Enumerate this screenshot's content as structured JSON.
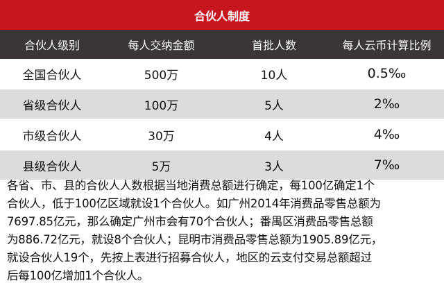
{
  "title": "合伙人制度",
  "table": {
    "headers": [
      "合伙人级别",
      "每人交纳金额",
      "首批人数",
      "每人云币计算比例"
    ],
    "rows": [
      [
        "全国合伙人",
        "500万",
        "10人",
        "0.5‰"
      ],
      [
        "省级合伙人",
        "100万",
        "5人",
        "2‰"
      ],
      [
        "市级合伙人",
        "30万",
        "4人",
        "4‰"
      ],
      [
        "县级合伙人",
        "5万",
        "3人",
        "7‰"
      ]
    ]
  },
  "paragraph_lines": [
    "各省、市、县的合伙人人数根据当地消费总额进行确定，每100亿确定1个",
    "合伙人，低于100亿区域就设1个合伙人。如广州2014年消费品零售总额为",
    "7697.85亿元，那么确定广州市会有70个合伙人；番禺区消费品零售总额",
    "为886.72亿元，就设8个合伙人；昆明市消费品零售总额为1905.89亿元，",
    "就设合伙人19个，先按上表进行招募合伙人，地区的云支付交易总额超过",
    "后每100亿增加1个合伙人。"
  ],
  "colors": {
    "title_bg": "#c8161e",
    "header_bg": "#3a3536",
    "stripe_bg": "#dcdcdc"
  }
}
